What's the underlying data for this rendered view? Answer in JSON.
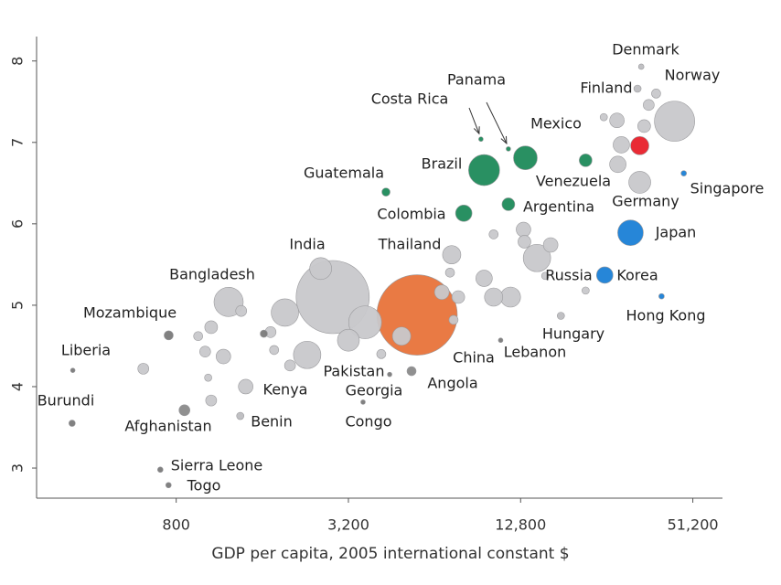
{
  "chart_data": {
    "type": "scatter",
    "x_label": "GDP per capita, 2005 international constant $",
    "log_x": true,
    "xlim": [
      260,
      65000
    ],
    "ylim": [
      2.63,
      8.3
    ],
    "xticks": [
      {
        "value": 800,
        "label": "800"
      },
      {
        "value": 3200,
        "label": "3,200"
      },
      {
        "value": 12800,
        "label": "12,800"
      },
      {
        "value": 51200,
        "label": "51,200"
      }
    ],
    "yticks": [
      3,
      4,
      5,
      6,
      7,
      8
    ],
    "points": [
      {
        "label": "Denmark",
        "x": 33800,
        "y": 7.93,
        "size": 3,
        "color": "#bdbdc0"
      },
      {
        "label": "Norway",
        "x": 44200,
        "y": 7.26,
        "size": 22,
        "color": "#c8c8cb"
      },
      {
        "label": "Finland",
        "x": 32800,
        "y": 7.66,
        "size": 4,
        "color": "#bdbdc0"
      },
      {
        "label": "Panama",
        "x": 11600,
        "y": 6.92,
        "size": 2.5,
        "color": "#1e8a5a"
      },
      {
        "label": "Costa Rica",
        "x": 9300,
        "y": 7.04,
        "size": 2.5,
        "color": "#1e8a5a"
      },
      {
        "label": "Mexico",
        "x": 13300,
        "y": 6.81,
        "size": 13,
        "color": "#1e8a5a"
      },
      {
        "label": "Brazil",
        "x": 9540,
        "y": 6.66,
        "size": 17,
        "color": "#1e8a5a"
      },
      {
        "label": "Venezuela",
        "x": 21600,
        "y": 6.78,
        "size": 7,
        "color": "#1e8a5a"
      },
      {
        "label": "Guatemala",
        "x": 4330,
        "y": 6.39,
        "size": 4.5,
        "color": "#1e8a5a"
      },
      {
        "label": "Colombia",
        "x": 8100,
        "y": 6.13,
        "size": 9,
        "color": "#1e8a5a"
      },
      {
        "label": "Argentina",
        "x": 11600,
        "y": 6.24,
        "size": 7,
        "color": "#1e8a5a"
      },
      {
        "label": "Singapore",
        "x": 47600,
        "y": 6.62,
        "size": 3,
        "color": "#1a7fd6"
      },
      {
        "label": "Japan",
        "x": 31000,
        "y": 5.89,
        "size": 14,
        "color": "#1a7fd6"
      },
      {
        "label": "Korea",
        "x": 25200,
        "y": 5.37,
        "size": 9,
        "color": "#1a7fd6"
      },
      {
        "label": "Hong Kong",
        "x": 39800,
        "y": 5.11,
        "size": 3,
        "color": "#1a7fd6"
      },
      {
        "label": "India",
        "x": 2820,
        "y": 5.1,
        "size": 40,
        "color": "#c8c8cb"
      },
      {
        "label": "China",
        "x": 5560,
        "y": 4.88,
        "size": 44,
        "color": "#e8733a"
      },
      {
        "label": "Thailand",
        "x": 7350,
        "y": 5.62,
        "size": 10,
        "color": "#c8c8cb"
      },
      {
        "label": "Bangladesh",
        "x": 1220,
        "y": 5.04,
        "size": 16,
        "color": "#c8c8cb"
      },
      {
        "label": "Mozambique",
        "x": 753,
        "y": 4.63,
        "size": 5,
        "color": "#7a7a7a"
      },
      {
        "label": "Liberia",
        "x": 348,
        "y": 4.2,
        "size": 2.5,
        "color": "#7a7a7a"
      },
      {
        "label": "Burundi",
        "x": 346,
        "y": 3.55,
        "size": 3.5,
        "color": "#7a7a7a"
      },
      {
        "label": "Afghanistan",
        "x": 855,
        "y": 3.71,
        "size": 6,
        "color": "#8a8a8a"
      },
      {
        "label": "Sierra Leone",
        "x": 704,
        "y": 2.98,
        "size": 3,
        "color": "#7a7a7a"
      },
      {
        "label": "Togo",
        "x": 752,
        "y": 2.79,
        "size": 3,
        "color": "#7a7a7a"
      },
      {
        "label": "Kenya",
        "x": 1400,
        "y": 4.0,
        "size": 8,
        "color": "#c8c8cb"
      },
      {
        "label": "Benin",
        "x": 1340,
        "y": 3.64,
        "size": 4,
        "color": "#bdbdc0"
      },
      {
        "label": "Pakistan",
        "x": 2296,
        "y": 4.39,
        "size": 15,
        "color": "#c8c8cb"
      },
      {
        "label": "Georgia",
        "x": 4460,
        "y": 4.15,
        "size": 2.5,
        "color": "#7a7a7a"
      },
      {
        "label": "Congo",
        "x": 3600,
        "y": 3.81,
        "size": 2.5,
        "color": "#7a7a7a"
      },
      {
        "label": "Angola",
        "x": 5320,
        "y": 4.19,
        "size": 5,
        "color": "#8a8a8a"
      },
      {
        "label": "Lebanon",
        "x": 10900,
        "y": 4.57,
        "size": 2.5,
        "color": "#7a7a7a"
      },
      {
        "label": "Hungary",
        "x": 17700,
        "y": 4.87,
        "size": 4,
        "color": "#bdbdc0"
      },
      {
        "label": "Russia",
        "x": 14600,
        "y": 5.58,
        "size": 15,
        "color": "#c8c8cb"
      },
      {
        "label": "Germany",
        "x": 33400,
        "y": 6.51,
        "size": 12,
        "color": "#c8c8cb"
      },
      {
        "x": 33400,
        "y": 6.96,
        "size": 10,
        "color": "#e8202a"
      },
      {
        "x": 2560,
        "y": 5.45,
        "size": 12,
        "color": "#c8c8cb"
      },
      {
        "x": 3660,
        "y": 4.79,
        "size": 18,
        "color": "#c8c8cb"
      },
      {
        "x": 3200,
        "y": 4.57,
        "size": 12,
        "color": "#c8c8cb"
      },
      {
        "x": 1920,
        "y": 4.91,
        "size": 15,
        "color": "#c8c8cb"
      },
      {
        "x": 1710,
        "y": 4.67,
        "size": 6,
        "color": "#c8c8cb"
      },
      {
        "x": 1760,
        "y": 4.45,
        "size": 5,
        "color": "#c8c8cb"
      },
      {
        "x": 2000,
        "y": 4.26,
        "size": 6,
        "color": "#c8c8cb"
      },
      {
        "x": 1170,
        "y": 4.37,
        "size": 8,
        "color": "#c8c8cb"
      },
      {
        "x": 1010,
        "y": 4.43,
        "size": 6,
        "color": "#c8c8cb"
      },
      {
        "x": 1060,
        "y": 4.73,
        "size": 7,
        "color": "#c8c8cb"
      },
      {
        "x": 955,
        "y": 4.62,
        "size": 5,
        "color": "#c8c8cb"
      },
      {
        "x": 1350,
        "y": 4.93,
        "size": 6,
        "color": "#c8c8cb"
      },
      {
        "x": 614,
        "y": 4.22,
        "size": 6,
        "color": "#c8c8cb"
      },
      {
        "x": 1035,
        "y": 4.11,
        "size": 4,
        "color": "#c8c8cb"
      },
      {
        "x": 1060,
        "y": 3.83,
        "size": 6,
        "color": "#c8c8cb"
      },
      {
        "x": 4170,
        "y": 4.4,
        "size": 5,
        "color": "#c8c8cb"
      },
      {
        "x": 4910,
        "y": 4.62,
        "size": 10,
        "color": "#c8c8cb"
      },
      {
        "x": 6790,
        "y": 5.16,
        "size": 8,
        "color": "#c8c8cb"
      },
      {
        "x": 7750,
        "y": 5.1,
        "size": 7,
        "color": "#c8c8cb"
      },
      {
        "x": 7250,
        "y": 5.4,
        "size": 5,
        "color": "#c8c8cb"
      },
      {
        "x": 10300,
        "y": 5.1,
        "size": 10,
        "color": "#c8c8cb"
      },
      {
        "x": 11800,
        "y": 5.1,
        "size": 11,
        "color": "#c8c8cb"
      },
      {
        "x": 9540,
        "y": 5.33,
        "size": 9,
        "color": "#c8c8cb"
      },
      {
        "x": 13100,
        "y": 5.93,
        "size": 8,
        "color": "#c8c8cb"
      },
      {
        "x": 16300,
        "y": 5.74,
        "size": 8,
        "color": "#c8c8cb"
      },
      {
        "x": 13200,
        "y": 5.78,
        "size": 7,
        "color": "#c8c8cb"
      },
      {
        "x": 28000,
        "y": 6.73,
        "size": 9,
        "color": "#c8c8cb"
      },
      {
        "x": 28800,
        "y": 6.97,
        "size": 9,
        "color": "#c8c8cb"
      },
      {
        "x": 27800,
        "y": 7.27,
        "size": 8,
        "color": "#c8c8cb"
      },
      {
        "x": 34600,
        "y": 7.2,
        "size": 7,
        "color": "#c8c8cb"
      },
      {
        "x": 35900,
        "y": 7.46,
        "size": 6,
        "color": "#c8c8cb"
      },
      {
        "x": 38100,
        "y": 7.6,
        "size": 5,
        "color": "#c8c8cb"
      },
      {
        "x": 25000,
        "y": 7.31,
        "size": 4,
        "color": "#c8c8cb"
      },
      {
        "x": 10300,
        "y": 5.87,
        "size": 5,
        "color": "#c8c8cb"
      },
      {
        "x": 15600,
        "y": 5.36,
        "size": 4,
        "color": "#c8c8cb"
      },
      {
        "x": 21600,
        "y": 5.18,
        "size": 4,
        "color": "#c8c8cb"
      },
      {
        "x": 1620,
        "y": 4.65,
        "size": 4,
        "color": "#7a7a7a"
      },
      {
        "x": 7460,
        "y": 4.82,
        "size": 5,
        "color": "#c8c8cb"
      }
    ]
  }
}
